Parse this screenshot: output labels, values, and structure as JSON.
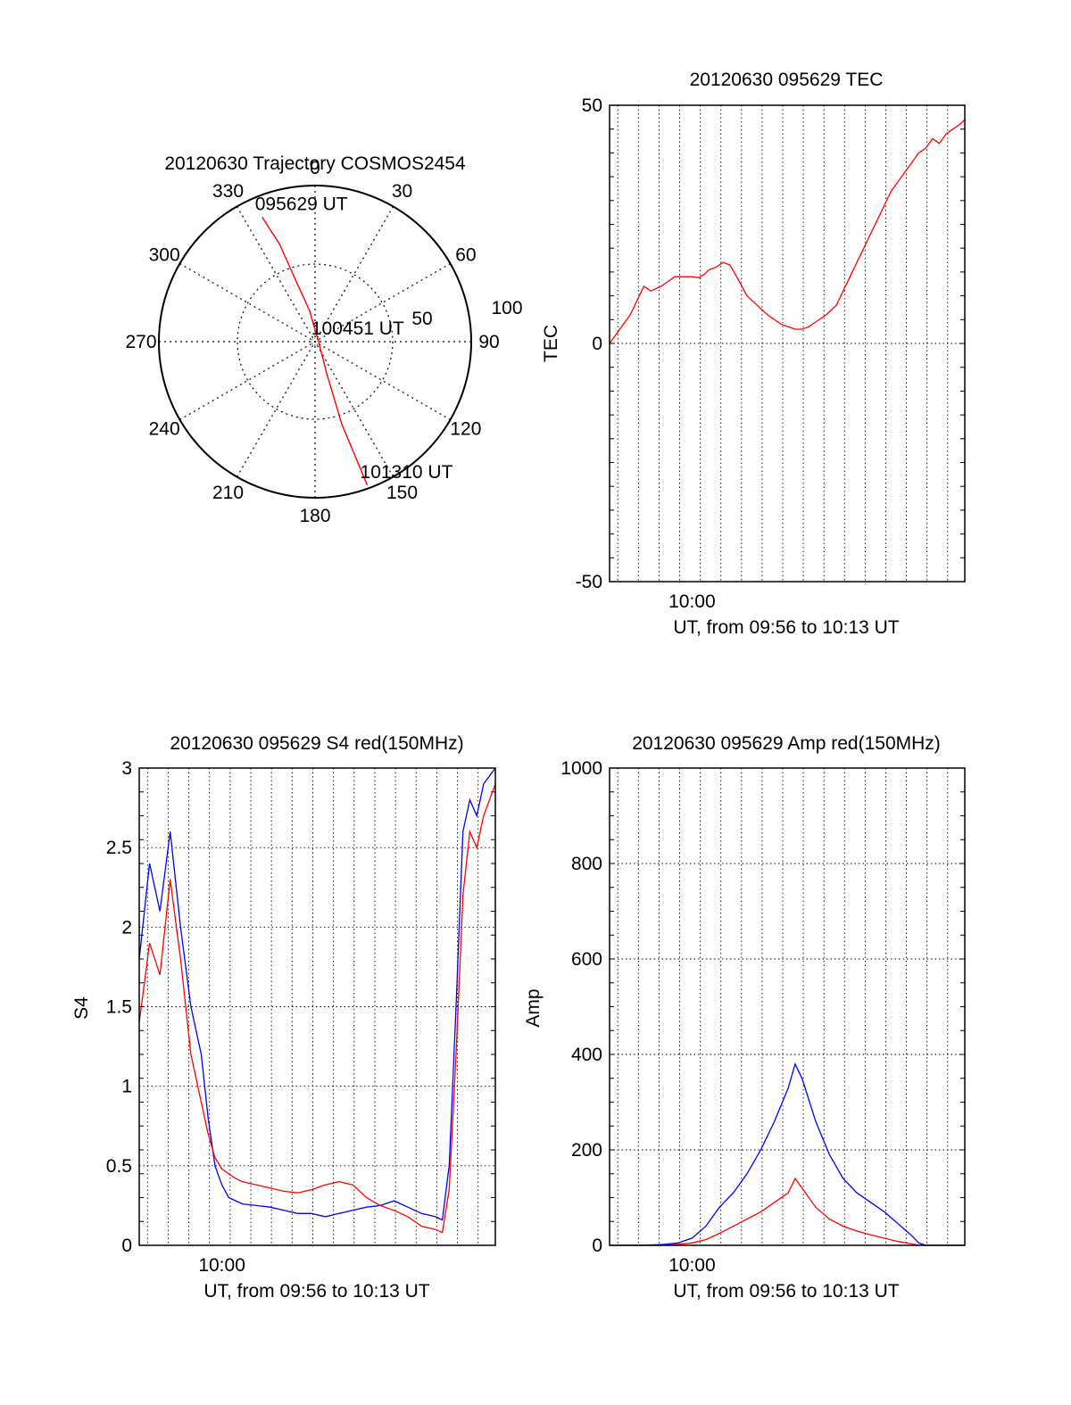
{
  "chart_data": [
    {
      "type": "polar-trajectory",
      "title": "20120630 Trajectory COSMOS2454",
      "azimuth_labels": [
        "0",
        "30",
        "60",
        "90",
        "120",
        "150",
        "180",
        "210",
        "240",
        "270",
        "300",
        "330"
      ],
      "radial_labels": [
        "50",
        "100"
      ],
      "series": [
        {
          "color": "#ff0000",
          "points": [
            {
              "az": 337,
              "zd": 78
            },
            {
              "az": 340,
              "zd": 60
            },
            {
              "az": 342,
              "zd": 40
            },
            {
              "az": 350,
              "zd": 18
            },
            {
              "az": 90,
              "zd": 2
            },
            {
              "az": 160,
              "zd": 20
            },
            {
              "az": 162,
              "zd": 50
            },
            {
              "az": 160,
              "zd": 88
            }
          ]
        }
      ],
      "annotations": [
        {
          "text": "095629 UT",
          "az": 337,
          "zd": 78
        },
        {
          "text": "100451 UT",
          "az": 90,
          "zd": 2
        },
        {
          "text": "101310 UT",
          "az": 160,
          "zd": 88
        }
      ]
    },
    {
      "type": "line",
      "title": "20120630 095629 TEC",
      "ylabel": "TEC",
      "xlabel": "UT, from 09:56 to 10:13 UT",
      "xlim": [
        0,
        1034
      ],
      "ylim": [
        -50,
        50
      ],
      "yticks": [
        -50,
        0,
        50
      ],
      "xticks": [
        {
          "t": 240,
          "label": "10:00"
        }
      ],
      "grid": true,
      "series": [
        {
          "color": "#ff0000",
          "x": [
            0,
            30,
            60,
            80,
            100,
            120,
            150,
            170,
            190,
            210,
            220,
            240,
            260,
            275,
            290,
            310,
            330,
            350,
            370,
            400,
            430,
            460,
            480,
            500,
            520,
            540,
            560,
            580,
            600,
            630,
            660,
            700,
            740,
            780,
            820,
            860,
            880,
            900,
            920,
            940,
            960,
            980,
            1000,
            1020,
            1034
          ],
          "y": [
            0,
            3,
            6,
            9,
            12,
            11,
            12,
            13,
            14,
            14,
            14,
            14,
            13.8,
            14.5,
            15.5,
            16,
            17,
            16.5,
            14,
            10,
            8,
            6,
            5,
            4,
            3.5,
            3,
            3,
            3.5,
            4.5,
            6,
            8,
            14,
            20,
            26,
            32,
            36,
            38,
            40,
            41,
            43,
            42,
            44,
            45,
            46,
            47
          ]
        }
      ]
    },
    {
      "type": "line",
      "title": "20120630 095629 S4 red(150MHz)",
      "ylabel": "S4",
      "xlabel": "UT, from 09:56 to 10:13 UT",
      "xlim": [
        0,
        1034
      ],
      "ylim": [
        0,
        3
      ],
      "yticks": [
        0,
        0.5,
        1,
        1.5,
        2,
        2.5,
        3
      ],
      "xticks": [
        {
          "t": 240,
          "label": "10:00"
        }
      ],
      "grid": true,
      "series": [
        {
          "color": "#0000ff",
          "x": [
            0,
            30,
            60,
            90,
            120,
            150,
            180,
            200,
            220,
            240,
            260,
            280,
            300,
            340,
            380,
            420,
            460,
            500,
            540,
            580,
            620,
            660,
            700,
            740,
            780,
            820,
            860,
            880,
            900,
            920,
            940,
            960,
            980,
            1000,
            1034
          ],
          "y": [
            1.8,
            2.4,
            2.1,
            2.6,
            2.0,
            1.5,
            1.2,
            0.8,
            0.5,
            0.38,
            0.3,
            0.28,
            0.26,
            0.25,
            0.24,
            0.22,
            0.2,
            0.2,
            0.18,
            0.2,
            0.22,
            0.24,
            0.25,
            0.28,
            0.24,
            0.2,
            0.18,
            0.16,
            0.5,
            1.5,
            2.6,
            2.8,
            2.7,
            2.9,
            3.0
          ]
        },
        {
          "color": "#ff0000",
          "x": [
            0,
            30,
            60,
            90,
            120,
            150,
            180,
            200,
            220,
            240,
            260,
            280,
            300,
            340,
            380,
            420,
            460,
            500,
            540,
            580,
            620,
            660,
            700,
            740,
            780,
            820,
            860,
            880,
            900,
            920,
            940,
            960,
            980,
            1000,
            1034
          ],
          "y": [
            1.4,
            1.9,
            1.7,
            2.3,
            1.8,
            1.2,
            0.9,
            0.7,
            0.55,
            0.48,
            0.45,
            0.42,
            0.4,
            0.38,
            0.36,
            0.34,
            0.33,
            0.35,
            0.38,
            0.4,
            0.38,
            0.3,
            0.25,
            0.22,
            0.18,
            0.12,
            0.1,
            0.08,
            0.35,
            1.2,
            2.2,
            2.6,
            2.5,
            2.7,
            2.9
          ]
        }
      ]
    },
    {
      "type": "line",
      "title": "20120630 095629 Amp red(150MHz)",
      "ylabel": "Amp",
      "xlabel": "UT, from 09:56 to 10:13 UT",
      "xlim": [
        0,
        1034
      ],
      "ylim": [
        0,
        1000
      ],
      "yticks": [
        0,
        200,
        400,
        600,
        800,
        1000
      ],
      "xticks": [
        {
          "t": 240,
          "label": "10:00"
        }
      ],
      "grid": true,
      "series": [
        {
          "color": "#0000ff",
          "x": [
            0,
            100,
            160,
            200,
            240,
            280,
            320,
            360,
            400,
            440,
            480,
            520,
            540,
            560,
            600,
            640,
            680,
            720,
            760,
            800,
            840,
            880,
            900,
            920,
            960,
            1034
          ],
          "y": [
            0,
            0,
            2,
            5,
            15,
            40,
            80,
            110,
            150,
            200,
            260,
            330,
            380,
            350,
            260,
            190,
            140,
            110,
            90,
            70,
            45,
            20,
            5,
            0,
            0,
            0
          ]
        },
        {
          "color": "#ff0000",
          "x": [
            0,
            100,
            160,
            200,
            240,
            280,
            320,
            360,
            400,
            440,
            480,
            520,
            540,
            560,
            600,
            640,
            680,
            720,
            760,
            800,
            840,
            880,
            900,
            920,
            960,
            1034
          ],
          "y": [
            0,
            0,
            0,
            2,
            5,
            12,
            25,
            40,
            55,
            70,
            90,
            110,
            140,
            120,
            80,
            55,
            40,
            30,
            22,
            15,
            8,
            3,
            0,
            0,
            0,
            0
          ]
        }
      ]
    }
  ]
}
